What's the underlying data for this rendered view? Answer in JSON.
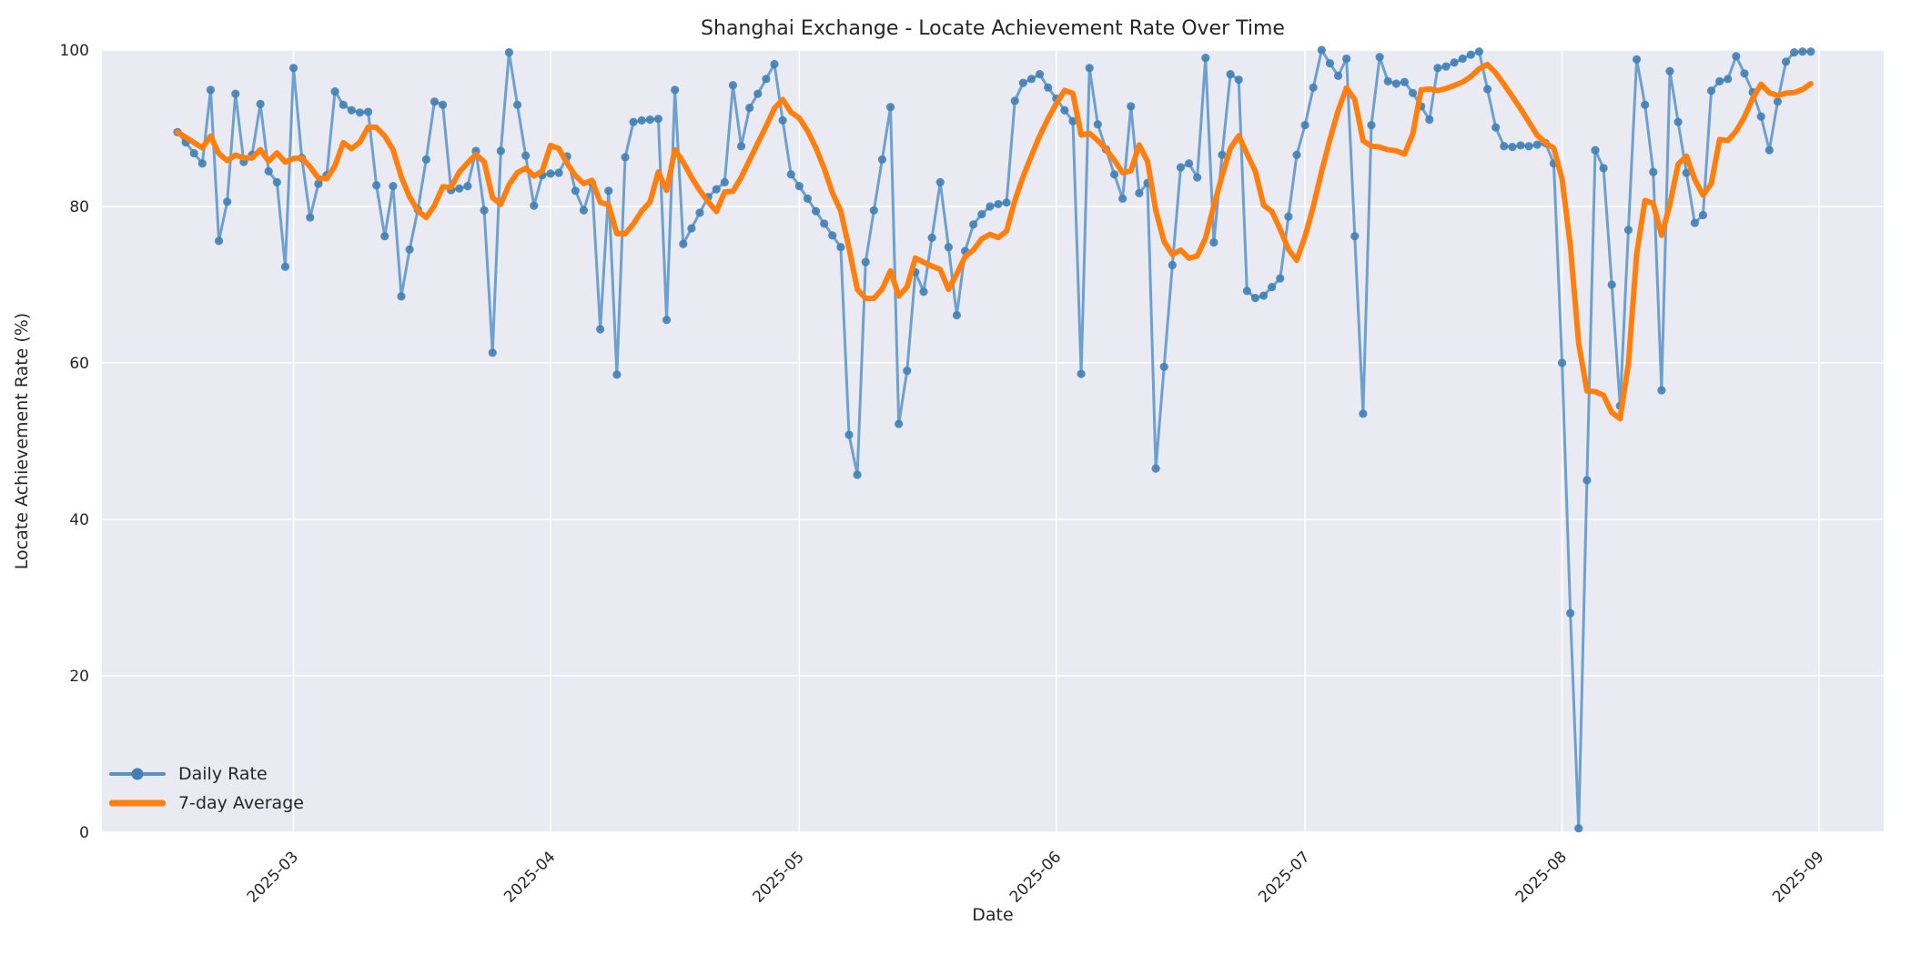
{
  "page": {
    "background": "#ffffff"
  },
  "chart_data": {
    "type": "line",
    "title": "Shanghai Exchange - Locate Achievement Rate Over Time",
    "xlabel": "Date",
    "ylabel": "Locate Achievement Rate (%)",
    "ylim": [
      0,
      100
    ],
    "y_ticks": [
      0,
      20,
      40,
      60,
      80,
      100
    ],
    "x_ticks": [
      {
        "label": "2025-03",
        "day": 14
      },
      {
        "label": "2025-04",
        "day": 45
      },
      {
        "label": "2025-05",
        "day": 75
      },
      {
        "label": "2025-06",
        "day": 106
      },
      {
        "label": "2025-07",
        "day": 136
      },
      {
        "label": "2025-08",
        "day": 167
      },
      {
        "label": "2025-09",
        "day": 198
      }
    ],
    "grid": true,
    "legend_position": "lower left",
    "start_date": "2025-02-15",
    "end_date": "2025-08-31",
    "colors": {
      "axes_background": "#eaeaf2",
      "gridline": "#ffffff",
      "daily_line": "#5793c9",
      "daily_marker": "#3f81b5",
      "average_line": "#ff7f0e",
      "text": "#262626"
    },
    "series": [
      {
        "name": "Daily Rate",
        "style": "line+markers",
        "color": "#5793c9",
        "values": [
          89.5,
          88.2,
          86.8,
          85.5,
          94.9,
          75.6,
          80.6,
          94.4,
          85.7,
          86.6,
          93.1,
          84.5,
          83.1,
          72.3,
          97.7,
          86.2,
          78.6,
          82.9,
          84.0,
          94.7,
          93.0,
          92.3,
          92.0,
          92.1,
          82.7,
          76.2,
          82.6,
          68.5,
          74.5,
          79.6,
          86.0,
          93.4,
          93.0,
          82.1,
          82.3,
          82.6,
          87.1,
          79.5,
          61.3,
          87.1,
          99.7,
          93.0,
          86.5,
          80.1,
          84.0,
          84.2,
          84.3,
          86.4,
          82.0,
          79.5,
          83.0,
          64.3,
          82.0,
          58.5,
          86.3,
          90.8,
          91.0,
          91.1,
          91.2,
          65.5,
          94.9,
          75.2,
          77.2,
          79.2,
          81.2,
          82.2,
          83.1,
          95.5,
          87.7,
          92.6,
          94.4,
          96.3,
          98.2,
          91.0,
          84.1,
          82.6,
          81.0,
          79.4,
          77.8,
          76.3,
          74.8,
          50.8,
          45.7,
          72.9,
          79.5,
          86.0,
          92.7,
          52.2,
          59.0,
          71.6,
          69.1,
          76.0,
          83.1,
          74.8,
          66.1,
          74.3,
          77.7,
          79.0,
          80.0,
          80.3,
          80.5,
          93.5,
          95.8,
          96.3,
          96.9,
          95.2,
          93.8,
          92.3,
          90.9,
          58.6,
          97.7,
          90.5,
          87.3,
          84.1,
          81.0,
          92.8,
          81.7,
          83.0,
          46.5,
          59.5,
          72.5,
          85.0,
          85.5,
          83.7,
          99.0,
          75.4,
          86.6,
          96.9,
          96.2,
          69.2,
          68.3,
          68.6,
          69.7,
          70.8,
          78.7,
          86.6,
          90.4,
          95.2,
          100.0,
          98.3,
          96.7,
          98.9,
          76.2,
          53.5,
          90.4,
          99.1,
          96.0,
          95.7,
          95.9,
          94.5,
          92.8,
          91.1,
          97.7,
          97.9,
          98.4,
          98.9,
          99.4,
          99.8,
          95.0,
          90.1,
          87.7,
          87.6,
          87.8,
          87.7,
          87.9,
          88.1,
          85.5,
          60.0,
          28.0,
          0.5,
          45.0,
          87.2,
          84.9,
          70.0,
          54.5,
          77.0,
          98.8,
          93.0,
          84.4,
          56.5,
          97.3,
          90.8,
          84.3,
          77.9,
          78.9,
          94.8,
          96.0,
          96.3,
          99.2,
          97.0,
          94.6,
          91.5,
          87.2,
          93.4,
          98.5,
          99.7,
          99.8,
          99.8
        ]
      },
      {
        "name": "7-day Average",
        "style": "line",
        "derived": "rolling_mean",
        "window": 7,
        "color": "#ff7f0e"
      }
    ]
  }
}
